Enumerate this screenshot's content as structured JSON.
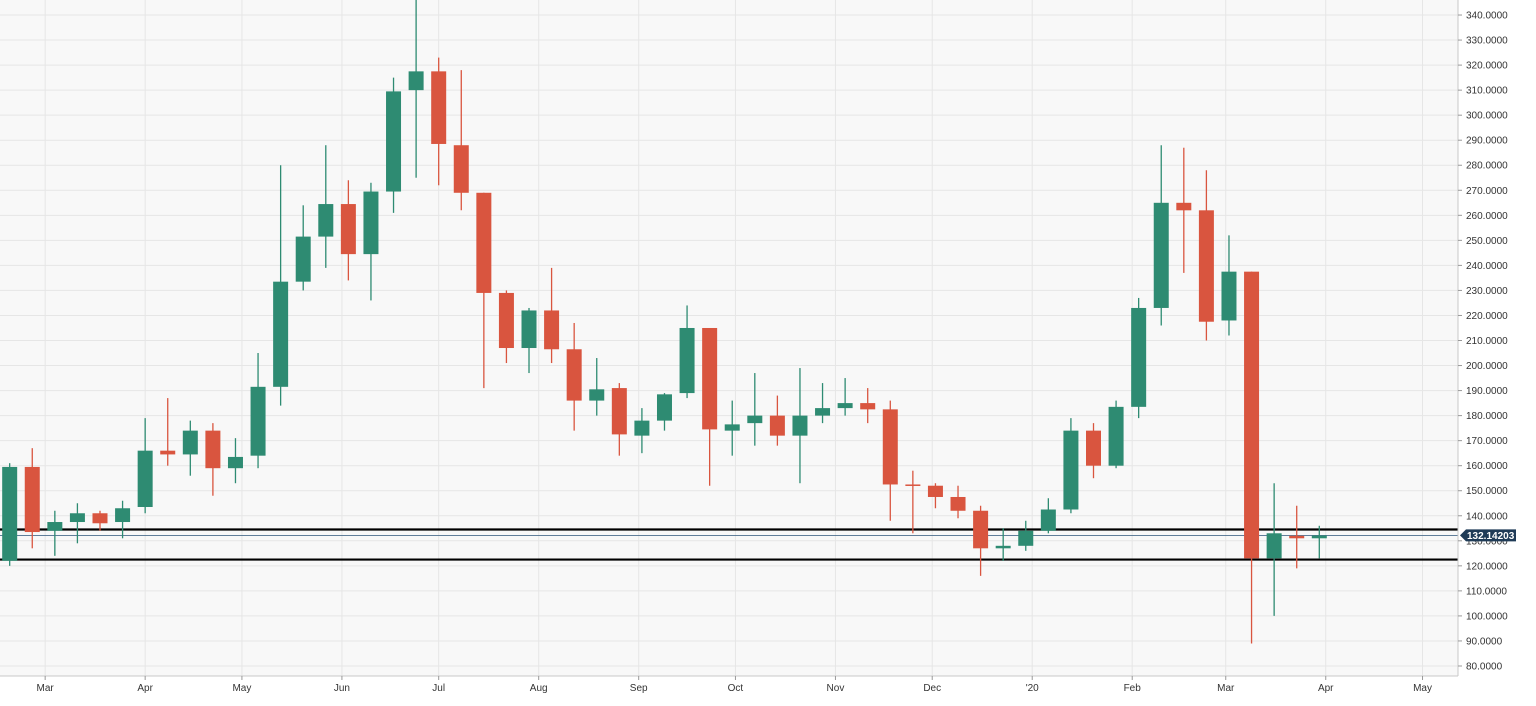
{
  "colors": {
    "up": "#2e8b72",
    "down": "#d9553f",
    "grid": "#e6e6e6",
    "plot_bg": "#f8f8f8",
    "axis_text": "#333333",
    "current_price_bg": "#1f3b57",
    "level_line": "#000000"
  },
  "chart_data": {
    "type": "candlestick",
    "title": "",
    "xlabel": "",
    "ylabel": "",
    "ylim": [
      76,
      346
    ],
    "yticks": [
      80,
      90,
      100,
      110,
      120,
      130,
      140,
      150,
      160,
      170,
      180,
      190,
      200,
      210,
      220,
      230,
      240,
      250,
      260,
      270,
      280,
      290,
      300,
      310,
      320,
      330,
      340
    ],
    "ytick_labels": [
      "80.0000",
      "90.0000",
      "100.0000",
      "110.0000",
      "120.0000",
      "130.0000",
      "140.0000",
      "150.0000",
      "160.0000",
      "170.0000",
      "180.0000",
      "190.0000",
      "200.0000",
      "210.0000",
      "220.0000",
      "230.0000",
      "240.0000",
      "250.0000",
      "260.0000",
      "270.0000",
      "280.0000",
      "290.0000",
      "300.0000",
      "310.0000",
      "320.0000",
      "330.0000",
      "340.0000"
    ],
    "xlim": [
      "2019-02-15",
      "2020-05-12"
    ],
    "xticks": [
      {
        "date": "2019-03-01",
        "label": "Mar"
      },
      {
        "date": "2019-04-01",
        "label": "Apr"
      },
      {
        "date": "2019-05-01",
        "label": "May"
      },
      {
        "date": "2019-06-01",
        "label": "Jun"
      },
      {
        "date": "2019-07-01",
        "label": "Jul"
      },
      {
        "date": "2019-08-01",
        "label": "Aug"
      },
      {
        "date": "2019-09-01",
        "label": "Sep"
      },
      {
        "date": "2019-10-01",
        "label": "Oct"
      },
      {
        "date": "2019-11-01",
        "label": "Nov"
      },
      {
        "date": "2019-12-01",
        "label": "Dec"
      },
      {
        "date": "2020-01-01",
        "label": "'20"
      },
      {
        "date": "2020-02-01",
        "label": "Feb"
      },
      {
        "date": "2020-03-01",
        "label": "Mar"
      },
      {
        "date": "2020-04-01",
        "label": "Apr"
      },
      {
        "date": "2020-05-01",
        "label": "May"
      }
    ],
    "grid": true,
    "current_price": 132.14203,
    "current_price_label": "132.14203",
    "horizontal_levels": [
      134.5,
      122.5
    ],
    "candles": [
      {
        "date": "2019-02-18",
        "open": 122,
        "high": 161,
        "low": 120,
        "close": 159.5
      },
      {
        "date": "2019-02-25",
        "open": 159.5,
        "high": 167,
        "low": 127,
        "close": 133.5
      },
      {
        "date": "2019-03-04",
        "open": 134,
        "high": 142,
        "low": 124,
        "close": 137.5
      },
      {
        "date": "2019-03-11",
        "open": 137.5,
        "high": 145,
        "low": 129,
        "close": 141
      },
      {
        "date": "2019-03-18",
        "open": 141,
        "high": 142,
        "low": 134,
        "close": 137
      },
      {
        "date": "2019-03-25",
        "open": 137.5,
        "high": 146,
        "low": 131,
        "close": 143
      },
      {
        "date": "2019-04-01",
        "open": 143.5,
        "high": 179,
        "low": 141,
        "close": 166
      },
      {
        "date": "2019-04-08",
        "open": 166,
        "high": 187,
        "low": 160,
        "close": 164.5
      },
      {
        "date": "2019-04-15",
        "open": 164.5,
        "high": 178,
        "low": 156,
        "close": 174
      },
      {
        "date": "2019-04-22",
        "open": 174,
        "high": 177,
        "low": 148,
        "close": 159
      },
      {
        "date": "2019-04-29",
        "open": 159,
        "high": 171,
        "low": 153,
        "close": 163.5
      },
      {
        "date": "2019-05-06",
        "open": 164,
        "high": 205,
        "low": 159,
        "close": 191.5
      },
      {
        "date": "2019-05-13",
        "open": 191.5,
        "high": 280,
        "low": 184,
        "close": 233.5
      },
      {
        "date": "2019-05-20",
        "open": 233.5,
        "high": 264,
        "low": 230,
        "close": 251.5
      },
      {
        "date": "2019-05-27",
        "open": 251.5,
        "high": 288,
        "low": 239,
        "close": 264.5
      },
      {
        "date": "2019-06-03",
        "open": 264.5,
        "high": 274,
        "low": 234,
        "close": 244.5
      },
      {
        "date": "2019-06-10",
        "open": 244.5,
        "high": 273,
        "low": 226,
        "close": 269.5
      },
      {
        "date": "2019-06-17",
        "open": 269.5,
        "high": 315,
        "low": 261,
        "close": 309.5
      },
      {
        "date": "2019-06-24",
        "open": 310,
        "high": 347,
        "low": 275,
        "close": 317.5
      },
      {
        "date": "2019-07-01",
        "open": 317.5,
        "high": 323,
        "low": 272,
        "close": 288.5
      },
      {
        "date": "2019-07-08",
        "open": 288,
        "high": 318,
        "low": 262,
        "close": 269
      },
      {
        "date": "2019-07-15",
        "open": 269,
        "high": 269,
        "low": 191,
        "close": 229
      },
      {
        "date": "2019-07-22",
        "open": 229,
        "high": 230,
        "low": 201,
        "close": 207
      },
      {
        "date": "2019-07-29",
        "open": 207,
        "high": 223,
        "low": 197,
        "close": 222
      },
      {
        "date": "2019-08-05",
        "open": 222,
        "high": 239,
        "low": 201,
        "close": 206.5
      },
      {
        "date": "2019-08-12",
        "open": 206.5,
        "high": 217,
        "low": 174,
        "close": 186
      },
      {
        "date": "2019-08-19",
        "open": 186,
        "high": 203,
        "low": 180,
        "close": 190.5
      },
      {
        "date": "2019-08-26",
        "open": 191,
        "high": 193,
        "low": 164,
        "close": 172.5
      },
      {
        "date": "2019-09-02",
        "open": 172,
        "high": 183,
        "low": 165,
        "close": 178
      },
      {
        "date": "2019-09-09",
        "open": 178,
        "high": 189,
        "low": 174,
        "close": 188.5
      },
      {
        "date": "2019-09-16",
        "open": 189,
        "high": 224,
        "low": 187,
        "close": 215
      },
      {
        "date": "2019-09-23",
        "open": 215,
        "high": 215,
        "low": 152,
        "close": 174.5
      },
      {
        "date": "2019-09-30",
        "open": 174,
        "high": 186,
        "low": 164,
        "close": 176.5
      },
      {
        "date": "2019-10-07",
        "open": 177,
        "high": 197,
        "low": 168,
        "close": 180
      },
      {
        "date": "2019-10-14",
        "open": 180,
        "high": 188,
        "low": 168,
        "close": 172
      },
      {
        "date": "2019-10-21",
        "open": 172,
        "high": 199,
        "low": 153,
        "close": 180
      },
      {
        "date": "2019-10-28",
        "open": 180,
        "high": 193,
        "low": 177,
        "close": 183
      },
      {
        "date": "2019-11-04",
        "open": 183,
        "high": 195,
        "low": 180,
        "close": 185
      },
      {
        "date": "2019-11-11",
        "open": 185,
        "high": 191,
        "low": 177,
        "close": 182.5
      },
      {
        "date": "2019-11-18",
        "open": 182.5,
        "high": 186,
        "low": 138,
        "close": 152.5
      },
      {
        "date": "2019-11-25",
        "open": 152.5,
        "high": 158,
        "low": 133,
        "close": 152
      },
      {
        "date": "2019-12-02",
        "open": 152,
        "high": 153,
        "low": 143,
        "close": 147.5
      },
      {
        "date": "2019-12-09",
        "open": 147.5,
        "high": 152,
        "low": 139,
        "close": 142
      },
      {
        "date": "2019-12-16",
        "open": 142,
        "high": 144,
        "low": 116,
        "close": 127
      },
      {
        "date": "2019-12-23",
        "open": 127,
        "high": 135,
        "low": 122,
        "close": 128
      },
      {
        "date": "2019-12-30",
        "open": 128,
        "high": 138,
        "low": 126,
        "close": 134
      },
      {
        "date": "2020-01-06",
        "open": 134,
        "high": 147,
        "low": 133,
        "close": 142.5
      },
      {
        "date": "2020-01-13",
        "open": 142.5,
        "high": 179,
        "low": 141,
        "close": 174
      },
      {
        "date": "2020-01-20",
        "open": 174,
        "high": 177,
        "low": 155,
        "close": 160
      },
      {
        "date": "2020-01-27",
        "open": 160,
        "high": 186,
        "low": 159,
        "close": 183.5
      },
      {
        "date": "2020-02-03",
        "open": 183.5,
        "high": 227,
        "low": 179,
        "close": 223
      },
      {
        "date": "2020-02-10",
        "open": 223,
        "high": 288,
        "low": 216,
        "close": 265
      },
      {
        "date": "2020-02-17",
        "open": 265,
        "high": 287,
        "low": 237,
        "close": 262
      },
      {
        "date": "2020-02-24",
        "open": 262,
        "high": 278,
        "low": 210,
        "close": 217.5
      },
      {
        "date": "2020-03-02",
        "open": 218,
        "high": 252,
        "low": 212,
        "close": 237.5
      },
      {
        "date": "2020-03-09",
        "open": 237.5,
        "high": 237.5,
        "low": 89,
        "close": 123
      },
      {
        "date": "2020-03-16",
        "open": 123,
        "high": 153,
        "low": 100,
        "close": 133
      },
      {
        "date": "2020-03-23",
        "open": 132,
        "high": 144,
        "low": 119,
        "close": 131
      },
      {
        "date": "2020-03-30",
        "open": 131,
        "high": 136,
        "low": 123,
        "close": 132.1
      }
    ]
  }
}
